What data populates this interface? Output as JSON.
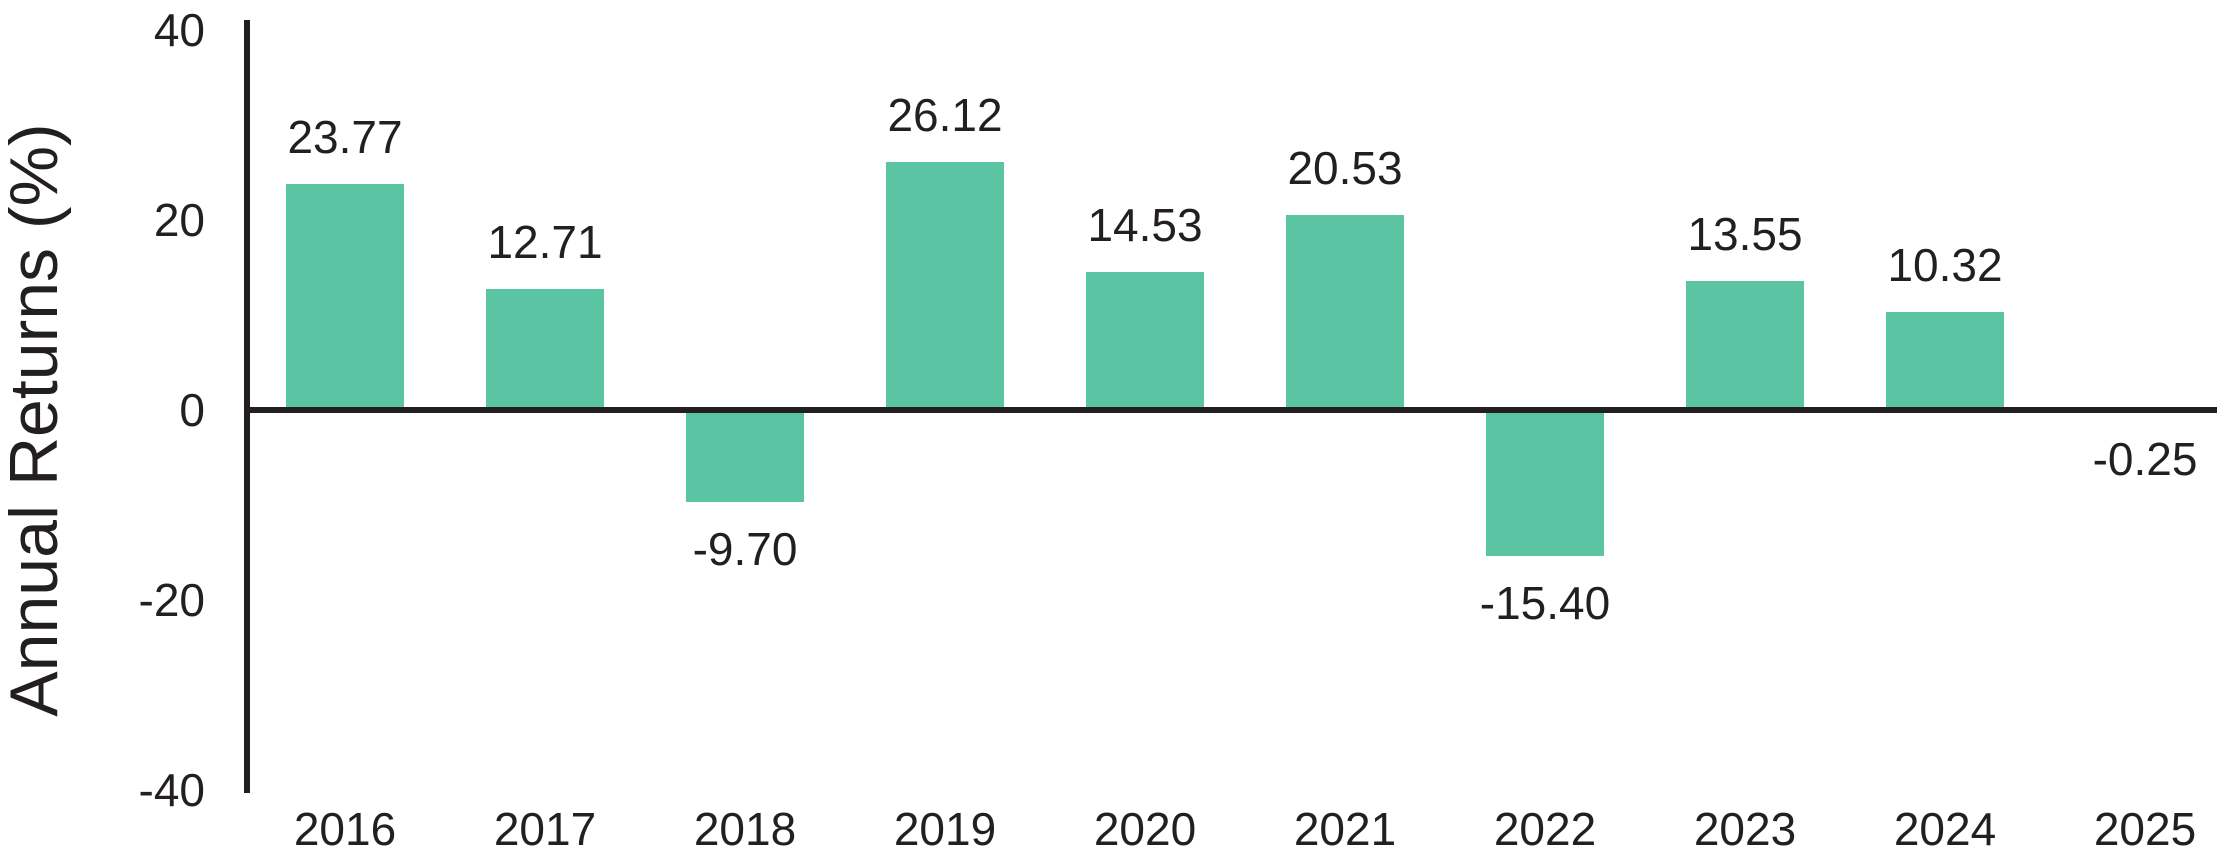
{
  "chart_data": {
    "type": "bar",
    "title": "",
    "xlabel": "",
    "ylabel": "Annual Returns (%)",
    "categories": [
      "2016",
      "2017",
      "2018",
      "2019",
      "2020",
      "2021",
      "2022",
      "2023",
      "2024",
      "2025"
    ],
    "values": [
      23.77,
      12.71,
      -9.7,
      26.12,
      14.53,
      20.53,
      -15.4,
      13.55,
      10.32,
      -0.25
    ],
    "value_labels": [
      "23.77",
      "12.71",
      "-9.70",
      "26.12",
      "14.53",
      "20.53",
      "-15.40",
      "13.55",
      "10.32",
      "-0.25"
    ],
    "ytick_labels": [
      "40",
      "20",
      "0",
      "-20",
      "-40"
    ],
    "ytick_values": [
      40,
      20,
      0,
      -20,
      -40
    ],
    "ylim": [
      -40,
      40
    ],
    "grid": false,
    "legend": null,
    "bar_color": "#5BC4A3",
    "axis_color": "#231F20",
    "text_color": "#231F20"
  }
}
